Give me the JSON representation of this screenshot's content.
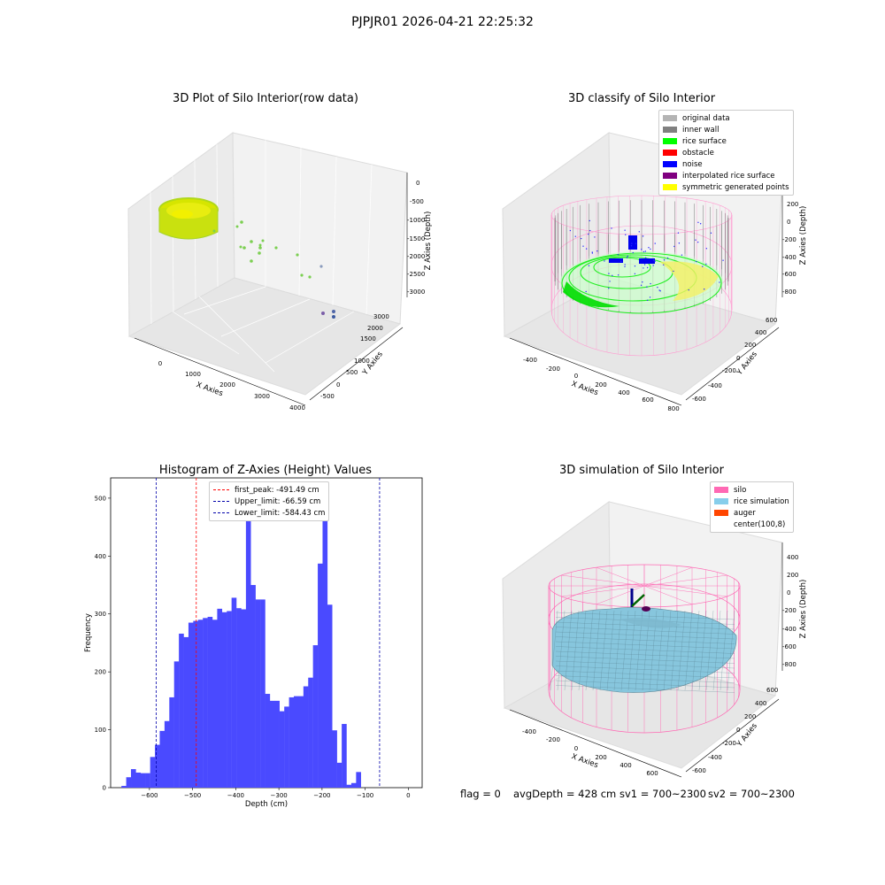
{
  "suptitle": "PJPJR01 2026-04-21 22:25:32",
  "chart_data": [
    {
      "type": "scatter",
      "title": "3D Plot of Silo Interior(row data)",
      "xlabel": "X Axies",
      "ylabel": "Y Axies",
      "zlabel": "Z Axies (Depth)",
      "x_ticks": [
        "0",
        "1000",
        "2000",
        "3000",
        "4000"
      ],
      "y_ticks": [
        "-500",
        "0",
        "500",
        "1000",
        "1500",
        "2000",
        "2500",
        "3000"
      ],
      "z_ticks": [
        "0",
        "-500",
        "-1000",
        "-1500",
        "-2000",
        "-2500",
        "-3000"
      ]
    },
    {
      "type": "scatter",
      "title": "3D classify of Silo Interior",
      "xlabel": "X Axies",
      "ylabel": "Y Axies",
      "zlabel": "Z Axies (Depth)",
      "x_ticks": [
        "-400",
        "-200",
        "0",
        "200",
        "400",
        "600",
        "800"
      ],
      "y_ticks": [
        "-600",
        "-400",
        "-200",
        "0",
        "200",
        "400",
        "600"
      ],
      "z_ticks": [
        "200",
        "0",
        "-200",
        "-400",
        "-600",
        "-800"
      ],
      "legend": [
        {
          "label": "original data",
          "color": "#b4b4b4"
        },
        {
          "label": "inner wall",
          "color": "#808080"
        },
        {
          "label": "rice surface",
          "color": "#00ff00"
        },
        {
          "label": "obstacle",
          "color": "#ff0000"
        },
        {
          "label": "noise",
          "color": "#0000ff"
        },
        {
          "label": "interpolated rice surface",
          "color": "#800080"
        },
        {
          "label": "symmetric generated points",
          "color": "#ffff00"
        }
      ]
    },
    {
      "type": "bar",
      "title": "Histogram of Z-Axies (Height) Values",
      "xlabel": "Depth (cm)",
      "ylabel": "Frequency",
      "xlim": [
        -690,
        32
      ],
      "ylim": [
        0,
        535
      ],
      "x_ticks": [
        -600,
        -500,
        -400,
        -300,
        -200,
        -100,
        0
      ],
      "y_ticks": [
        0,
        100,
        200,
        300,
        400,
        500
      ],
      "bar_color": "#4a4aff",
      "bin_start": -665,
      "bin_width": 11.1,
      "values": [
        3,
        18,
        32,
        26,
        25,
        25,
        53,
        74,
        98,
        115,
        156,
        218,
        266,
        260,
        285,
        288,
        290,
        293,
        295,
        290,
        309,
        303,
        305,
        328,
        310,
        308,
        520,
        350,
        325,
        325,
        162,
        150,
        150,
        132,
        140,
        156,
        158,
        158,
        175,
        190,
        246,
        387,
        502,
        316,
        99,
        43,
        110,
        5,
        8,
        27
      ],
      "lines": [
        {
          "label": "first_peak: -491.49 cm",
          "x": -491.49,
          "color": "#ff0000"
        },
        {
          "label": "Upper_limit: -66.59 cm",
          "x": -66.59,
          "color": "#0000aa"
        },
        {
          "label": "Lower_limit: -584.43 cm",
          "x": -584.43,
          "color": "#0000aa"
        }
      ]
    },
    {
      "type": "area",
      "title": "3D simulation of Silo Interior",
      "xlabel": "X Axies",
      "ylabel": "Y Axies",
      "zlabel": "Z Axies (Depth)",
      "x_ticks": [
        "-400",
        "-200",
        "0",
        "200",
        "400",
        "600"
      ],
      "y_ticks": [
        "-600",
        "-400",
        "-200",
        "0",
        "200",
        "400",
        "600"
      ],
      "z_ticks": [
        "400",
        "200",
        "0",
        "-200",
        "-400",
        "-600",
        "-800"
      ],
      "legend": [
        {
          "label": "silo",
          "color": "#ff69b4"
        },
        {
          "label": "rice simulation",
          "color": "#87ceeb"
        },
        {
          "label": "auger",
          "color": "#ff4500"
        },
        {
          "label": "center(100,8)",
          "color": "#ffffff"
        }
      ]
    }
  ],
  "footer": {
    "flag": "flag = 0",
    "avg": "avgDepth = 428 cm",
    "sv1": "sv1 = 700~2300",
    "sv2": "sv2 = 700~2300"
  }
}
